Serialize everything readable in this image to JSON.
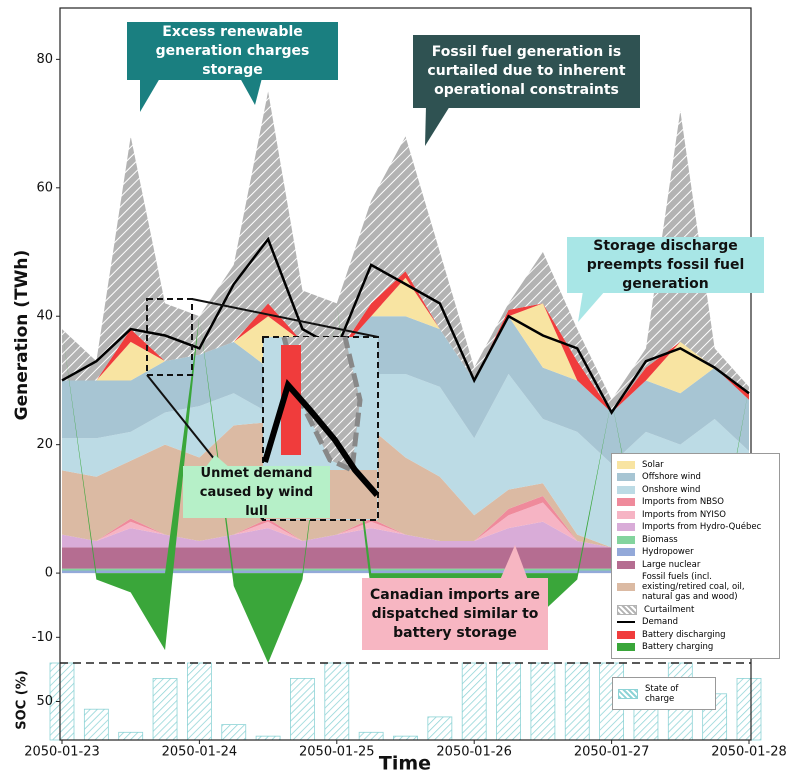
{
  "chart_data": [
    {
      "type": "area",
      "stacked": true,
      "ylabel": "Generation (TWh)",
      "xlim": [
        0,
        5
      ],
      "ylim": [
        -14,
        88
      ],
      "yticks": [
        -10,
        0,
        20,
        40,
        60,
        80
      ],
      "x": [
        0,
        0.25,
        0.5,
        0.75,
        1,
        1.25,
        1.5,
        1.75,
        2,
        2.25,
        2.5,
        2.75,
        3,
        3.25,
        3.5,
        3.75,
        4,
        4.25,
        4.5,
        4.75,
        5
      ],
      "series": [
        {
          "name": "Solar",
          "color": "#f8e4a2",
          "values": [
            0,
            0,
            6,
            0,
            0,
            0,
            8,
            0,
            0,
            0,
            6,
            0,
            0,
            0,
            10,
            0,
            0,
            0,
            8,
            0,
            0
          ]
        },
        {
          "name": "Offshore wind",
          "color": "#a7c5d3",
          "values": [
            9,
            9,
            8,
            8,
            8,
            8,
            7,
            8,
            9,
            9,
            9,
            9,
            9,
            9,
            8,
            8,
            8,
            8,
            8,
            8,
            8
          ]
        },
        {
          "name": "Onshore wind",
          "color": "#bcdbe5",
          "values": [
            5,
            6,
            4.5,
            5,
            8,
            5,
            1.5,
            3,
            1,
            8.5,
            13,
            14,
            12,
            18,
            10,
            16,
            13,
            15,
            10.5,
            19,
            14
          ]
        },
        {
          "name": "Imports from NBSO",
          "color": "#ef8a9b",
          "values": [
            0,
            0,
            0.5,
            0,
            0,
            0,
            0.5,
            0,
            0,
            0.5,
            0,
            0,
            0,
            1,
            1,
            0,
            0,
            0,
            0.5,
            0,
            0
          ]
        },
        {
          "name": "Imports from NYISO",
          "color": "#f6b4c4",
          "values": [
            0,
            0,
            1,
            0,
            0,
            0,
            1,
            0,
            0,
            1,
            0,
            0,
            0,
            2,
            3,
            0,
            0,
            0,
            1,
            0,
            0
          ]
        },
        {
          "name": "Imports from Hydro-Québec",
          "color": "#d9acd8",
          "values": [
            2,
            1,
            3,
            2,
            1,
            2,
            3,
            1,
            2,
            3,
            2,
            1,
            1,
            3,
            4,
            1,
            0,
            2,
            3,
            1,
            1
          ]
        },
        {
          "name": "Biomass",
          "color": "#83d49e",
          "values": [
            0.3,
            0.3,
            0.3,
            0.3,
            0.3,
            0.3,
            0.3,
            0.3,
            0.3,
            0.3,
            0.3,
            0.3,
            0.3,
            0.3,
            0.3,
            0.3,
            0.3,
            0.3,
            0.3,
            0.3,
            0.3
          ]
        },
        {
          "name": "Hydropower",
          "color": "#93a9d9",
          "values": [
            0.4,
            0.4,
            0.4,
            0.4,
            0.4,
            0.4,
            0.4,
            0.4,
            0.4,
            0.4,
            0.4,
            0.4,
            0.4,
            0.4,
            0.4,
            0.4,
            0.4,
            0.4,
            0.4,
            0.4,
            0.4
          ]
        },
        {
          "name": "Large nuclear",
          "color": "#b56d91",
          "values": [
            3.3,
            3.3,
            3.3,
            3.3,
            3.3,
            3.3,
            3.3,
            3.3,
            3.3,
            3.3,
            3.3,
            3.3,
            3.3,
            3.3,
            3.3,
            3.3,
            3.3,
            3.3,
            3.3,
            3.3,
            3.3
          ]
        },
        {
          "name": "Fossil fuels (incl. existing/retired coal, oil, natural gas and wood)",
          "color": "#dbbaa3",
          "values": [
            10,
            10,
            9,
            14,
            13,
            17,
            15,
            20,
            18,
            14,
            12,
            10,
            4,
            3,
            2,
            1,
            0,
            1,
            1,
            0,
            0
          ]
        },
        {
          "name": "Curtailment",
          "color": "#b3b3b3",
          "hatch": true,
          "values": [
            8,
            3,
            30,
            9,
            6,
            12,
            33,
            8,
            8,
            16,
            21,
            12,
            2,
            1,
            8,
            5,
            2,
            3,
            36,
            3,
            1
          ]
        },
        {
          "name": "Demand",
          "color": "#000000",
          "type": "line",
          "values": [
            30,
            33,
            38,
            37,
            35,
            45,
            52,
            38,
            35,
            48,
            45,
            42,
            30,
            40,
            37,
            35,
            25,
            33,
            35,
            32,
            28
          ]
        },
        {
          "name": "Battery discharging",
          "color": "#f03c3c",
          "values": [
            0,
            0,
            2,
            0,
            0,
            0,
            2,
            0,
            0,
            2,
            1,
            0,
            0,
            1,
            0,
            3,
            0,
            2,
            0,
            0,
            1
          ]
        },
        {
          "name": "Battery charging",
          "color": "#3aa63a",
          "values": [
            0,
            -1,
            -3,
            -12,
            0,
            -2,
            -14,
            -1,
            0,
            -3,
            -5,
            -1,
            -1,
            -2,
            -6,
            -1,
            0,
            -1,
            -3,
            -1,
            0
          ]
        }
      ],
      "annotations": [
        "Excess renewable generation charges storage",
        "Fossil fuel generation is curtailed due to inherent operational constraints",
        "Storage discharge preempts fossil fuel generation",
        "Unmet demand caused by wind lull",
        "Canadian imports are dispatched similar to battery storage"
      ]
    },
    {
      "type": "bar",
      "ylabel": "SOC (%)",
      "xlabel": "Time",
      "xlim": [
        0,
        5
      ],
      "ylim": [
        0,
        100
      ],
      "yticks": [
        50
      ],
      "xticks": [
        {
          "value": 0,
          "label": "2050-01-23"
        },
        {
          "value": 1,
          "label": "2050-01-24"
        },
        {
          "value": 2,
          "label": "2050-01-25"
        },
        {
          "value": 3,
          "label": "2050-01-26"
        },
        {
          "value": 4,
          "label": "2050-01-27"
        },
        {
          "value": 5,
          "label": "2050-01-28"
        }
      ],
      "x": [
        0,
        0.25,
        0.5,
        0.75,
        1,
        1.25,
        1.5,
        1.75,
        2,
        2.25,
        2.5,
        2.75,
        3,
        3.25,
        3.5,
        3.75,
        4,
        4.25,
        4.5,
        4.75,
        5
      ],
      "series": [
        {
          "name": "State of charge",
          "color": "#8dd3d6",
          "hatch": true,
          "values": [
            100,
            40,
            10,
            80,
            100,
            20,
            5,
            80,
            100,
            10,
            5,
            30,
            100,
            100,
            100,
            100,
            100,
            40,
            100,
            60,
            80
          ]
        }
      ]
    }
  ]
}
